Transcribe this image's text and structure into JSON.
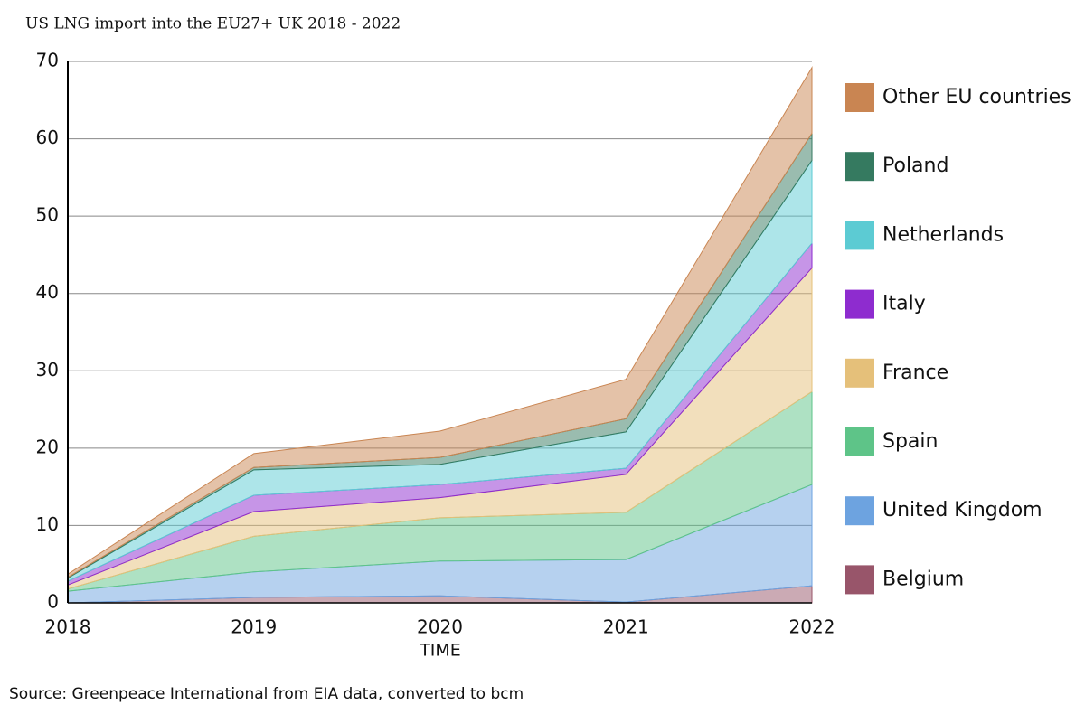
{
  "chart_data": {
    "type": "stacked_area",
    "title": "US LNG import into the EU27+ UK 2018 - 2022",
    "x_label": "TIME",
    "source": "Source: Greenpeace International from EIA data, converted to bcm",
    "x": [
      2018,
      2019,
      2020,
      2021,
      2022
    ],
    "xlim": [
      2018,
      2022
    ],
    "xticks": [
      2018,
      2019,
      2020,
      2021,
      2022
    ],
    "ylim": [
      0,
      70
    ],
    "yticks": [
      0,
      10,
      20,
      30,
      40,
      50,
      60,
      70
    ],
    "grid": true,
    "legend": "right",
    "series": [
      {
        "name": "Belgium",
        "color": "#98556a",
        "values": [
          0,
          0.7,
          0.9,
          0.1,
          2.2
        ]
      },
      {
        "name": "United Kingdom",
        "color": "#6da3e0",
        "values": [
          1.5,
          3.3,
          4.5,
          5.5,
          13.1
        ]
      },
      {
        "name": "Spain",
        "color": "#5ec488",
        "values": [
          0.3,
          4.6,
          5.6,
          6.1,
          12.0
        ]
      },
      {
        "name": "France",
        "color": "#e5c07a",
        "values": [
          0.5,
          3.2,
          2.6,
          4.9,
          16.0
        ]
      },
      {
        "name": "Italy",
        "color": "#8e2ccf",
        "values": [
          0.5,
          2.1,
          1.7,
          0.8,
          3.2
        ]
      },
      {
        "name": "Netherlands",
        "color": "#5ccbd3",
        "values": [
          0.4,
          3.3,
          2.6,
          4.7,
          10.7
        ]
      },
      {
        "name": "Poland",
        "color": "#357a60",
        "values": [
          0.1,
          0.3,
          0.9,
          1.7,
          3.5
        ]
      },
      {
        "name": "Other EU countries",
        "color": "#c98552",
        "values": [
          0.4,
          1.8,
          3.4,
          5.1,
          8.5
        ]
      }
    ]
  }
}
